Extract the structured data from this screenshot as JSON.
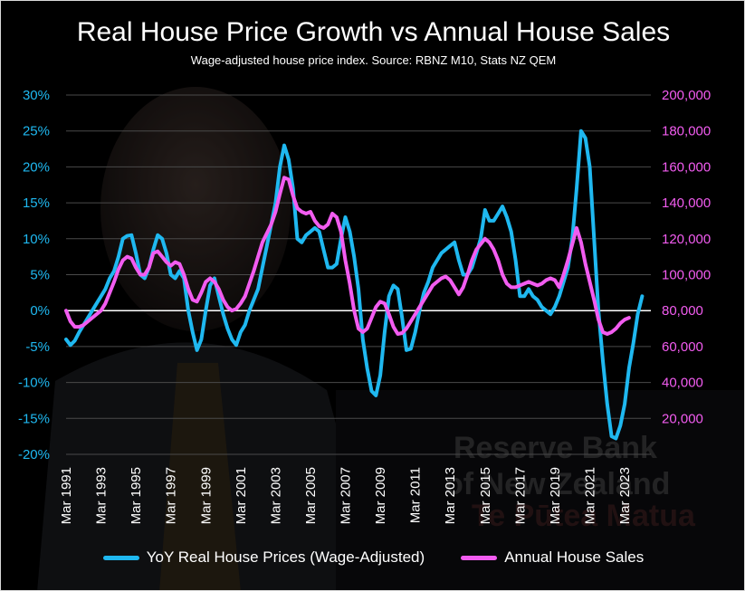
{
  "title": "Real House Price Growth vs Annual House Sales",
  "subtitle": "Wage-adjusted house price index. Source: RBNZ M10, Stats NZ QEM",
  "colors": {
    "price": "#1fb8f0",
    "sales": "#f25cf0",
    "background": "#000000",
    "grid": "#4a4a4a",
    "axis_left": "#1fb8f0",
    "axis_right": "#f25cf0"
  },
  "chart_data": {
    "type": "line",
    "x_tick_labels": [
      "Mar 1991",
      "Mar 1993",
      "Mar 1995",
      "Mar 1997",
      "Mar 1999",
      "Mar 2001",
      "Mar 2003",
      "Mar 2005",
      "Mar 2007",
      "Mar 2009",
      "Mar 2011",
      "Mar 2013",
      "Mar 2015",
      "Mar 2017",
      "Mar 2019",
      "Mar 2021",
      "Mar 2023"
    ],
    "x_range": [
      1991.0,
      2024.5
    ],
    "y_left": {
      "min": -0.2,
      "max": 0.3,
      "ticks": [
        -0.2,
        -0.15,
        -0.1,
        -0.05,
        0,
        0.05,
        0.1,
        0.15,
        0.2,
        0.25,
        0.3
      ],
      "tick_labels": [
        "-20%",
        "-15%",
        "-10%",
        "-5%",
        "0%",
        "5%",
        "10%",
        "15%",
        "20%",
        "25%",
        "30%"
      ]
    },
    "y_right": {
      "min": 0,
      "max": 200000,
      "ticks": [
        20000,
        40000,
        60000,
        80000,
        100000,
        120000,
        140000,
        160000,
        180000,
        200000
      ],
      "tick_labels": [
        "20,000",
        "40,000",
        "60,000",
        "80,000",
        "100,000",
        "120,000",
        "140,000",
        "160,000",
        "180,000",
        "200,000"
      ]
    },
    "series": [
      {
        "name": "YoY Real House Prices (Wage-Adjusted)",
        "axis": "left",
        "points": [
          [
            1991.0,
            -0.04
          ],
          [
            1991.25,
            -0.048
          ],
          [
            1991.5,
            -0.042
          ],
          [
            1991.75,
            -0.03
          ],
          [
            1992.0,
            -0.02
          ],
          [
            1992.25,
            -0.01
          ],
          [
            1992.5,
            0.0
          ],
          [
            1992.75,
            0.01
          ],
          [
            1993.0,
            0.02
          ],
          [
            1993.25,
            0.03
          ],
          [
            1993.5,
            0.045
          ],
          [
            1993.75,
            0.055
          ],
          [
            1994.0,
            0.075
          ],
          [
            1994.25,
            0.1
          ],
          [
            1994.5,
            0.104
          ],
          [
            1994.75,
            0.105
          ],
          [
            1995.0,
            0.08
          ],
          [
            1995.25,
            0.05
          ],
          [
            1995.5,
            0.045
          ],
          [
            1995.75,
            0.06
          ],
          [
            1996.0,
            0.085
          ],
          [
            1996.25,
            0.105
          ],
          [
            1996.5,
            0.1
          ],
          [
            1996.75,
            0.08
          ],
          [
            1997.0,
            0.05
          ],
          [
            1997.25,
            0.045
          ],
          [
            1997.5,
            0.055
          ],
          [
            1997.75,
            0.045
          ],
          [
            1998.0,
            0.0
          ],
          [
            1998.25,
            -0.03
          ],
          [
            1998.5,
            -0.055
          ],
          [
            1998.75,
            -0.04
          ],
          [
            1999.0,
            0.0
          ],
          [
            1999.25,
            0.035
          ],
          [
            1999.5,
            0.045
          ],
          [
            1999.75,
            0.02
          ],
          [
            2000.0,
            -0.005
          ],
          [
            2000.25,
            -0.025
          ],
          [
            2000.5,
            -0.04
          ],
          [
            2000.75,
            -0.048
          ],
          [
            2001.0,
            -0.03
          ],
          [
            2001.25,
            -0.02
          ],
          [
            2001.5,
            0.0
          ],
          [
            2001.75,
            0.015
          ],
          [
            2002.0,
            0.03
          ],
          [
            2002.25,
            0.06
          ],
          [
            2002.5,
            0.09
          ],
          [
            2002.75,
            0.12
          ],
          [
            2003.0,
            0.15
          ],
          [
            2003.25,
            0.2
          ],
          [
            2003.5,
            0.23
          ],
          [
            2003.75,
            0.21
          ],
          [
            2004.0,
            0.17
          ],
          [
            2004.25,
            0.1
          ],
          [
            2004.5,
            0.095
          ],
          [
            2004.75,
            0.105
          ],
          [
            2005.0,
            0.11
          ],
          [
            2005.25,
            0.115
          ],
          [
            2005.5,
            0.11
          ],
          [
            2005.75,
            0.085
          ],
          [
            2006.0,
            0.06
          ],
          [
            2006.25,
            0.06
          ],
          [
            2006.5,
            0.065
          ],
          [
            2006.75,
            0.1
          ],
          [
            2007.0,
            0.13
          ],
          [
            2007.25,
            0.11
          ],
          [
            2007.5,
            0.075
          ],
          [
            2007.75,
            0.03
          ],
          [
            2008.0,
            -0.04
          ],
          [
            2008.25,
            -0.08
          ],
          [
            2008.5,
            -0.112
          ],
          [
            2008.75,
            -0.118
          ],
          [
            2009.0,
            -0.09
          ],
          [
            2009.25,
            -0.03
          ],
          [
            2009.5,
            0.02
          ],
          [
            2009.75,
            0.035
          ],
          [
            2010.0,
            0.03
          ],
          [
            2010.25,
            -0.01
          ],
          [
            2010.5,
            -0.055
          ],
          [
            2010.75,
            -0.053
          ],
          [
            2011.0,
            -0.03
          ],
          [
            2011.25,
            0.0
          ],
          [
            2011.5,
            0.025
          ],
          [
            2011.75,
            0.04
          ],
          [
            2012.0,
            0.06
          ],
          [
            2012.25,
            0.07
          ],
          [
            2012.5,
            0.08
          ],
          [
            2012.75,
            0.085
          ],
          [
            2013.0,
            0.09
          ],
          [
            2013.25,
            0.095
          ],
          [
            2013.5,
            0.07
          ],
          [
            2013.75,
            0.05
          ],
          [
            2014.0,
            0.05
          ],
          [
            2014.25,
            0.06
          ],
          [
            2014.5,
            0.08
          ],
          [
            2014.75,
            0.1
          ],
          [
            2015.0,
            0.14
          ],
          [
            2015.25,
            0.125
          ],
          [
            2015.5,
            0.125
          ],
          [
            2015.75,
            0.135
          ],
          [
            2016.0,
            0.145
          ],
          [
            2016.25,
            0.13
          ],
          [
            2016.5,
            0.11
          ],
          [
            2016.75,
            0.07
          ],
          [
            2017.0,
            0.02
          ],
          [
            2017.25,
            0.02
          ],
          [
            2017.5,
            0.03
          ],
          [
            2017.75,
            0.02
          ],
          [
            2018.0,
            0.015
          ],
          [
            2018.25,
            0.005
          ],
          [
            2018.5,
            0.0
          ],
          [
            2018.75,
            -0.005
          ],
          [
            2019.0,
            0.005
          ],
          [
            2019.25,
            0.02
          ],
          [
            2019.5,
            0.04
          ],
          [
            2019.75,
            0.06
          ],
          [
            2020.0,
            0.1
          ],
          [
            2020.25,
            0.17
          ],
          [
            2020.5,
            0.25
          ],
          [
            2020.75,
            0.24
          ],
          [
            2021.0,
            0.2
          ],
          [
            2021.25,
            0.1
          ],
          [
            2021.5,
            0.0
          ],
          [
            2021.75,
            -0.07
          ],
          [
            2022.0,
            -0.13
          ],
          [
            2022.25,
            -0.175
          ],
          [
            2022.5,
            -0.178
          ],
          [
            2022.75,
            -0.16
          ],
          [
            2023.0,
            -0.13
          ],
          [
            2023.25,
            -0.08
          ],
          [
            2023.5,
            -0.045
          ],
          [
            2023.75,
            -0.005
          ],
          [
            2024.0,
            0.02
          ]
        ]
      },
      {
        "name": "Annual House Sales",
        "axis": "right",
        "points": [
          [
            1991.0,
            80000
          ],
          [
            1991.25,
            74000
          ],
          [
            1991.5,
            71000
          ],
          [
            1991.75,
            71000
          ],
          [
            1992.0,
            72000
          ],
          [
            1992.25,
            74000
          ],
          [
            1992.5,
            76000
          ],
          [
            1992.75,
            78000
          ],
          [
            1993.0,
            80000
          ],
          [
            1993.25,
            84000
          ],
          [
            1993.5,
            90000
          ],
          [
            1993.75,
            96000
          ],
          [
            1994.0,
            103000
          ],
          [
            1994.25,
            108000
          ],
          [
            1994.5,
            110000
          ],
          [
            1994.75,
            109000
          ],
          [
            1995.0,
            104000
          ],
          [
            1995.25,
            100000
          ],
          [
            1995.5,
            100000
          ],
          [
            1995.75,
            104000
          ],
          [
            1996.0,
            112000
          ],
          [
            1996.25,
            113000
          ],
          [
            1996.5,
            110000
          ],
          [
            1996.75,
            107000
          ],
          [
            1997.0,
            105000
          ],
          [
            1997.25,
            107000
          ],
          [
            1997.5,
            106000
          ],
          [
            1997.75,
            100000
          ],
          [
            1998.0,
            92000
          ],
          [
            1998.25,
            86000
          ],
          [
            1998.5,
            85000
          ],
          [
            1998.75,
            90000
          ],
          [
            1999.0,
            96000
          ],
          [
            1999.25,
            98000
          ],
          [
            1999.5,
            96000
          ],
          [
            1999.75,
            92000
          ],
          [
            2000.0,
            86000
          ],
          [
            2000.25,
            82000
          ],
          [
            2000.5,
            80000
          ],
          [
            2000.75,
            81000
          ],
          [
            2001.0,
            84000
          ],
          [
            2001.25,
            88000
          ],
          [
            2001.5,
            95000
          ],
          [
            2001.75,
            102000
          ],
          [
            2002.0,
            110000
          ],
          [
            2002.25,
            118000
          ],
          [
            2002.5,
            123000
          ],
          [
            2002.75,
            128000
          ],
          [
            2003.0,
            135000
          ],
          [
            2003.25,
            145000
          ],
          [
            2003.5,
            154000
          ],
          [
            2003.75,
            153000
          ],
          [
            2004.0,
            144000
          ],
          [
            2004.25,
            137000
          ],
          [
            2004.5,
            135000
          ],
          [
            2004.75,
            134000
          ],
          [
            2005.0,
            135000
          ],
          [
            2005.25,
            130000
          ],
          [
            2005.5,
            127000
          ],
          [
            2005.75,
            126000
          ],
          [
            2006.0,
            128000
          ],
          [
            2006.25,
            134000
          ],
          [
            2006.5,
            132000
          ],
          [
            2006.75,
            124000
          ],
          [
            2007.0,
            108000
          ],
          [
            2007.25,
            95000
          ],
          [
            2007.5,
            80000
          ],
          [
            2007.75,
            70000
          ],
          [
            2008.0,
            68000
          ],
          [
            2008.25,
            70000
          ],
          [
            2008.5,
            76000
          ],
          [
            2008.75,
            82000
          ],
          [
            2009.0,
            85000
          ],
          [
            2009.25,
            84000
          ],
          [
            2009.5,
            78000
          ],
          [
            2009.75,
            71000
          ],
          [
            2010.0,
            67000
          ],
          [
            2010.25,
            67500
          ],
          [
            2010.5,
            70000
          ],
          [
            2010.75,
            74000
          ],
          [
            2011.0,
            78000
          ],
          [
            2011.25,
            82000
          ],
          [
            2011.5,
            86000
          ],
          [
            2011.75,
            90000
          ],
          [
            2012.0,
            94000
          ],
          [
            2012.25,
            96000
          ],
          [
            2012.5,
            98000
          ],
          [
            2012.75,
            99000
          ],
          [
            2013.0,
            97000
          ],
          [
            2013.25,
            93000
          ],
          [
            2013.5,
            89000
          ],
          [
            2013.75,
            93000
          ],
          [
            2014.0,
            100000
          ],
          [
            2014.25,
            108000
          ],
          [
            2014.5,
            114000
          ],
          [
            2014.75,
            117000
          ],
          [
            2015.0,
            120000
          ],
          [
            2015.25,
            118000
          ],
          [
            2015.5,
            114000
          ],
          [
            2015.75,
            108000
          ],
          [
            2016.0,
            100000
          ],
          [
            2016.25,
            95000
          ],
          [
            2016.5,
            93000
          ],
          [
            2016.75,
            93000
          ],
          [
            2017.0,
            94000
          ],
          [
            2017.25,
            95000
          ],
          [
            2017.5,
            96000
          ],
          [
            2017.75,
            95000
          ],
          [
            2018.0,
            94000
          ],
          [
            2018.25,
            95000
          ],
          [
            2018.5,
            97000
          ],
          [
            2018.75,
            98000
          ],
          [
            2019.0,
            97000
          ],
          [
            2019.25,
            93000
          ],
          [
            2019.5,
            100000
          ],
          [
            2019.75,
            108000
          ],
          [
            2020.0,
            117000
          ],
          [
            2020.25,
            126000
          ],
          [
            2020.5,
            118000
          ],
          [
            2020.75,
            106000
          ],
          [
            2021.0,
            96000
          ],
          [
            2021.25,
            86000
          ],
          [
            2021.5,
            75000
          ],
          [
            2021.75,
            68000
          ],
          [
            2022.0,
            67000
          ],
          [
            2022.25,
            68000
          ],
          [
            2022.5,
            70000
          ],
          [
            2022.75,
            73000
          ],
          [
            2023.0,
            75000
          ],
          [
            2023.25,
            76000
          ]
        ]
      }
    ],
    "grid": true,
    "legend": "bottom"
  }
}
